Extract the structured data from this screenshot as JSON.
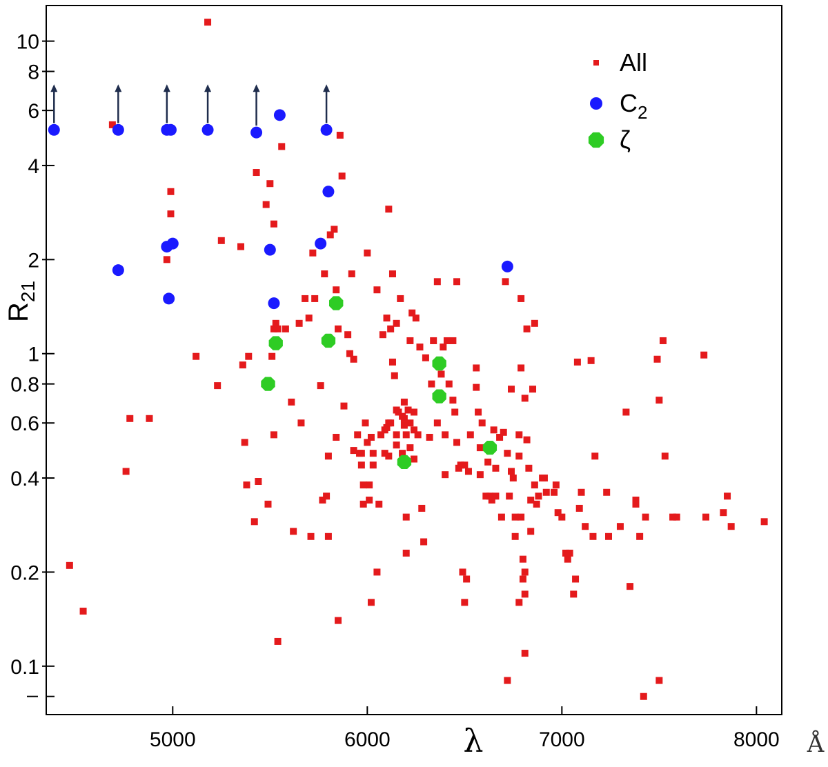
{
  "chart_data": {
    "type": "scatter",
    "xlabel": "λ",
    "xunit": "Å",
    "ylabel_main": "R",
    "ylabel_sub": "21",
    "xlim": [
      4350,
      8130
    ],
    "ylim": [
      0.07,
      13
    ],
    "yscale": "log",
    "grid": false,
    "legend_position": "top-right",
    "x_ticks": [
      5000,
      6000,
      7000,
      8000
    ],
    "x_tick_labels": [
      "5000",
      "6000",
      "7000",
      "8000"
    ],
    "y_ticks": [
      0.1,
      0.2,
      0.4,
      0.6,
      0.8,
      1,
      2,
      4,
      6,
      8,
      10
    ],
    "y_tick_labels": [
      "0.1",
      "0.2",
      "0.4",
      "0.6",
      "0.8",
      "1",
      "2",
      "4",
      "6",
      "8",
      "10"
    ],
    "y_minor_ticks": [
      0.08
    ],
    "series": [
      {
        "name": "All",
        "color": "#e41a1c",
        "marker": "square",
        "points": [
          [
            4470,
            0.21
          ],
          [
            4540,
            0.15
          ],
          [
            4690,
            5.4
          ],
          [
            4760,
            0.42
          ],
          [
            4780,
            0.62
          ],
          [
            4880,
            0.62
          ],
          [
            4970,
            2.0
          ],
          [
            4990,
            3.3
          ],
          [
            4990,
            2.8
          ],
          [
            5120,
            0.98
          ],
          [
            5180,
            11.5
          ],
          [
            5230,
            0.79
          ],
          [
            5250,
            2.3
          ],
          [
            5350,
            2.2
          ],
          [
            5360,
            0.92
          ],
          [
            5370,
            0.52
          ],
          [
            5380,
            0.38
          ],
          [
            5390,
            0.98
          ],
          [
            5420,
            0.29
          ],
          [
            5440,
            0.39
          ],
          [
            5480,
            3.0
          ],
          [
            5490,
            0.33
          ],
          [
            5500,
            3.5
          ],
          [
            5510,
            0.98
          ],
          [
            5520,
            0.55
          ],
          [
            5520,
            1.2
          ],
          [
            5520,
            2.6
          ],
          [
            5430,
            3.8
          ],
          [
            5530,
            1.25
          ],
          [
            5540,
            1.2
          ],
          [
            5540,
            0.12
          ],
          [
            5560,
            4.6
          ],
          [
            5580,
            1.2
          ],
          [
            5610,
            0.7
          ],
          [
            5620,
            0.27
          ],
          [
            5650,
            1.25
          ],
          [
            5660,
            0.6
          ],
          [
            5680,
            1.5
          ],
          [
            5700,
            1.3
          ],
          [
            5710,
            0.26
          ],
          [
            5720,
            2.1
          ],
          [
            5730,
            1.5
          ],
          [
            5760,
            0.79
          ],
          [
            5770,
            0.34
          ],
          [
            5780,
            1.8
          ],
          [
            5790,
            0.35
          ],
          [
            5800,
            0.47
          ],
          [
            5800,
            0.26
          ],
          [
            5810,
            2.4
          ],
          [
            5830,
            2.5
          ],
          [
            5840,
            1.6
          ],
          [
            5840,
            0.54
          ],
          [
            5850,
            1.2
          ],
          [
            5850,
            0.14
          ],
          [
            5860,
            5.0
          ],
          [
            5870,
            3.7
          ],
          [
            5880,
            0.68
          ],
          [
            5900,
            1.15
          ],
          [
            5910,
            1.0
          ],
          [
            5920,
            1.8
          ],
          [
            5930,
            0.96
          ],
          [
            5930,
            0.49
          ],
          [
            5950,
            0.55
          ],
          [
            5960,
            0.48
          ],
          [
            5970,
            0.48
          ],
          [
            5970,
            0.44
          ],
          [
            5980,
            0.38
          ],
          [
            5980,
            0.33
          ],
          [
            5990,
            0.6
          ],
          [
            6000,
            2.1
          ],
          [
            6000,
            0.52
          ],
          [
            6010,
            0.38
          ],
          [
            6010,
            0.34
          ],
          [
            6020,
            0.54
          ],
          [
            6020,
            0.16
          ],
          [
            6030,
            0.48
          ],
          [
            6030,
            0.44
          ],
          [
            6050,
            1.6
          ],
          [
            6050,
            0.2
          ],
          [
            6060,
            0.33
          ],
          [
            6070,
            0.55
          ],
          [
            6080,
            1.15
          ],
          [
            6090,
            0.48
          ],
          [
            6090,
            0.57
          ],
          [
            6100,
            1.3
          ],
          [
            6100,
            0.58
          ],
          [
            6110,
            0.6
          ],
          [
            6110,
            0.47
          ],
          [
            6110,
            2.9
          ],
          [
            6120,
            1.2
          ],
          [
            6120,
            0.6
          ],
          [
            6130,
            1.8
          ],
          [
            6130,
            0.94
          ],
          [
            6140,
            0.85
          ],
          [
            6150,
            0.66
          ],
          [
            6150,
            0.51
          ],
          [
            6150,
            1.25
          ],
          [
            6150,
            0.55
          ],
          [
            6160,
            0.65
          ],
          [
            6170,
            1.5
          ],
          [
            6180,
            0.63
          ],
          [
            6180,
            0.48
          ],
          [
            6190,
            0.7
          ],
          [
            6190,
            0.59
          ],
          [
            6190,
            0.62
          ],
          [
            6200,
            0.55
          ],
          [
            6200,
            0.23
          ],
          [
            6200,
            0.3
          ],
          [
            6210,
            0.66
          ],
          [
            6220,
            1.1
          ],
          [
            6220,
            0.6
          ],
          [
            6220,
            0.5
          ],
          [
            6230,
            1.35
          ],
          [
            6240,
            0.57
          ],
          [
            6240,
            0.65
          ],
          [
            6240,
            0.46
          ],
          [
            6250,
            1.3
          ],
          [
            6260,
            0.55
          ],
          [
            6270,
            1.05
          ],
          [
            6280,
            0.32
          ],
          [
            6290,
            0.25
          ],
          [
            6300,
            0.97
          ],
          [
            6320,
            0.54
          ],
          [
            6330,
            0.8
          ],
          [
            6340,
            1.1
          ],
          [
            6360,
            1.7
          ],
          [
            6360,
            0.6
          ],
          [
            6380,
            0.86
          ],
          [
            6390,
            1.05
          ],
          [
            6400,
            0.55
          ],
          [
            6400,
            0.41
          ],
          [
            6410,
            1.1
          ],
          [
            6420,
            0.8
          ],
          [
            6440,
            1.1
          ],
          [
            6440,
            0.71
          ],
          [
            6450,
            0.65
          ],
          [
            6460,
            1.7
          ],
          [
            6460,
            0.52
          ],
          [
            6470,
            0.43
          ],
          [
            6480,
            0.44
          ],
          [
            6490,
            0.2
          ],
          [
            6500,
            0.44
          ],
          [
            6500,
            0.16
          ],
          [
            6510,
            0.19
          ],
          [
            6520,
            0.42
          ],
          [
            6530,
            0.55
          ],
          [
            6560,
            0.9
          ],
          [
            6560,
            0.78
          ],
          [
            6570,
            0.65
          ],
          [
            6580,
            0.5
          ],
          [
            6580,
            0.41
          ],
          [
            6590,
            0.6
          ],
          [
            6610,
            0.35
          ],
          [
            6620,
            0.45
          ],
          [
            6630,
            0.35
          ],
          [
            6640,
            0.34
          ],
          [
            6650,
            0.57
          ],
          [
            6660,
            0.43
          ],
          [
            6660,
            0.35
          ],
          [
            6680,
            0.54
          ],
          [
            6690,
            0.3
          ],
          [
            6700,
            0.56
          ],
          [
            6710,
            1.7
          ],
          [
            6720,
            0.48
          ],
          [
            6720,
            0.09
          ],
          [
            6730,
            0.35
          ],
          [
            6740,
            0.77
          ],
          [
            6740,
            0.42
          ],
          [
            6750,
            0.4
          ],
          [
            6760,
            0.26
          ],
          [
            6760,
            0.3
          ],
          [
            6780,
            0.55
          ],
          [
            6780,
            0.47
          ],
          [
            6780,
            0.16
          ],
          [
            6790,
            1.5
          ],
          [
            6790,
            0.9
          ],
          [
            6790,
            0.3
          ],
          [
            6800,
            0.22
          ],
          [
            6800,
            0.19
          ],
          [
            6810,
            0.72
          ],
          [
            6810,
            0.2
          ],
          [
            6810,
            0.17
          ],
          [
            6810,
            0.11
          ],
          [
            6820,
            1.2
          ],
          [
            6820,
            0.53
          ],
          [
            6830,
            0.43
          ],
          [
            6840,
            0.34
          ],
          [
            6840,
            0.27
          ],
          [
            6850,
            0.77
          ],
          [
            6860,
            1.25
          ],
          [
            6860,
            0.38
          ],
          [
            6870,
            0.33
          ],
          [
            6880,
            0.35
          ],
          [
            6900,
            0.4
          ],
          [
            6910,
            0.4
          ],
          [
            6920,
            0.36
          ],
          [
            6960,
            0.36
          ],
          [
            6970,
            0.38
          ],
          [
            6980,
            0.31
          ],
          [
            7000,
            0.3
          ],
          [
            7020,
            0.23
          ],
          [
            7030,
            0.22
          ],
          [
            7040,
            0.23
          ],
          [
            7060,
            0.17
          ],
          [
            7070,
            0.19
          ],
          [
            7080,
            0.94
          ],
          [
            7090,
            0.32
          ],
          [
            7100,
            0.36
          ],
          [
            7120,
            0.28
          ],
          [
            7150,
            0.95
          ],
          [
            7160,
            0.26
          ],
          [
            7170,
            0.47
          ],
          [
            7230,
            0.36
          ],
          [
            7240,
            0.26
          ],
          [
            7300,
            0.28
          ],
          [
            7330,
            0.65
          ],
          [
            7350,
            0.18
          ],
          [
            7380,
            0.34
          ],
          [
            7380,
            0.33
          ],
          [
            7400,
            0.26
          ],
          [
            7420,
            0.08
          ],
          [
            7430,
            0.3
          ],
          [
            7490,
            0.96
          ],
          [
            7500,
            0.71
          ],
          [
            7500,
            0.09
          ],
          [
            7520,
            1.1
          ],
          [
            7530,
            0.47
          ],
          [
            7570,
            0.3
          ],
          [
            7590,
            0.3
          ],
          [
            7730,
            0.99
          ],
          [
            7740,
            0.3
          ],
          [
            7830,
            0.31
          ],
          [
            7850,
            0.35
          ],
          [
            7870,
            0.28
          ],
          [
            8040,
            0.29
          ]
        ]
      },
      {
        "name": "C₂",
        "color": "#1a1aff",
        "marker": "circle",
        "points": [
          [
            4390,
            5.2
          ],
          [
            4720,
            5.2
          ],
          [
            4720,
            1.85
          ],
          [
            4970,
            2.2
          ],
          [
            4970,
            5.2
          ],
          [
            4980,
            1.5
          ],
          [
            4990,
            5.2
          ],
          [
            5000,
            2.25
          ],
          [
            5180,
            5.2
          ],
          [
            5430,
            5.1
          ],
          [
            5500,
            2.15
          ],
          [
            5520,
            1.45
          ],
          [
            5550,
            5.8
          ],
          [
            5760,
            2.25
          ],
          [
            5790,
            5.2
          ],
          [
            5800,
            3.3
          ],
          [
            6720,
            1.9
          ]
        ]
      },
      {
        "name": "ζ",
        "color": "#2ecc24",
        "marker": "octagon",
        "points": [
          [
            5490,
            0.8
          ],
          [
            5530,
            1.08
          ],
          [
            5800,
            1.1
          ],
          [
            5840,
            1.45
          ],
          [
            6190,
            0.45
          ],
          [
            6370,
            0.93
          ],
          [
            6370,
            0.73
          ],
          [
            6630,
            0.5
          ]
        ]
      }
    ],
    "lower_limits": [
      {
        "x": 4390,
        "y": 5.2
      },
      {
        "x": 4720,
        "y": 5.2
      },
      {
        "x": 4970,
        "y": 5.2
      },
      {
        "x": 5180,
        "y": 5.2
      },
      {
        "x": 5430,
        "y": 5.1
      },
      {
        "x": 5790,
        "y": 5.2
      }
    ]
  },
  "legend": {
    "items": [
      {
        "label": "All",
        "sub": "",
        "color": "#e41a1c",
        "marker": "square"
      },
      {
        "label": "C",
        "sub": "2",
        "color": "#1a1aff",
        "marker": "circle"
      },
      {
        "label": "ζ",
        "sub": "",
        "color": "#2ecc24",
        "marker": "octagon"
      }
    ]
  },
  "colors": {
    "axis": "#000000",
    "arrow": "#1f2d4d"
  }
}
